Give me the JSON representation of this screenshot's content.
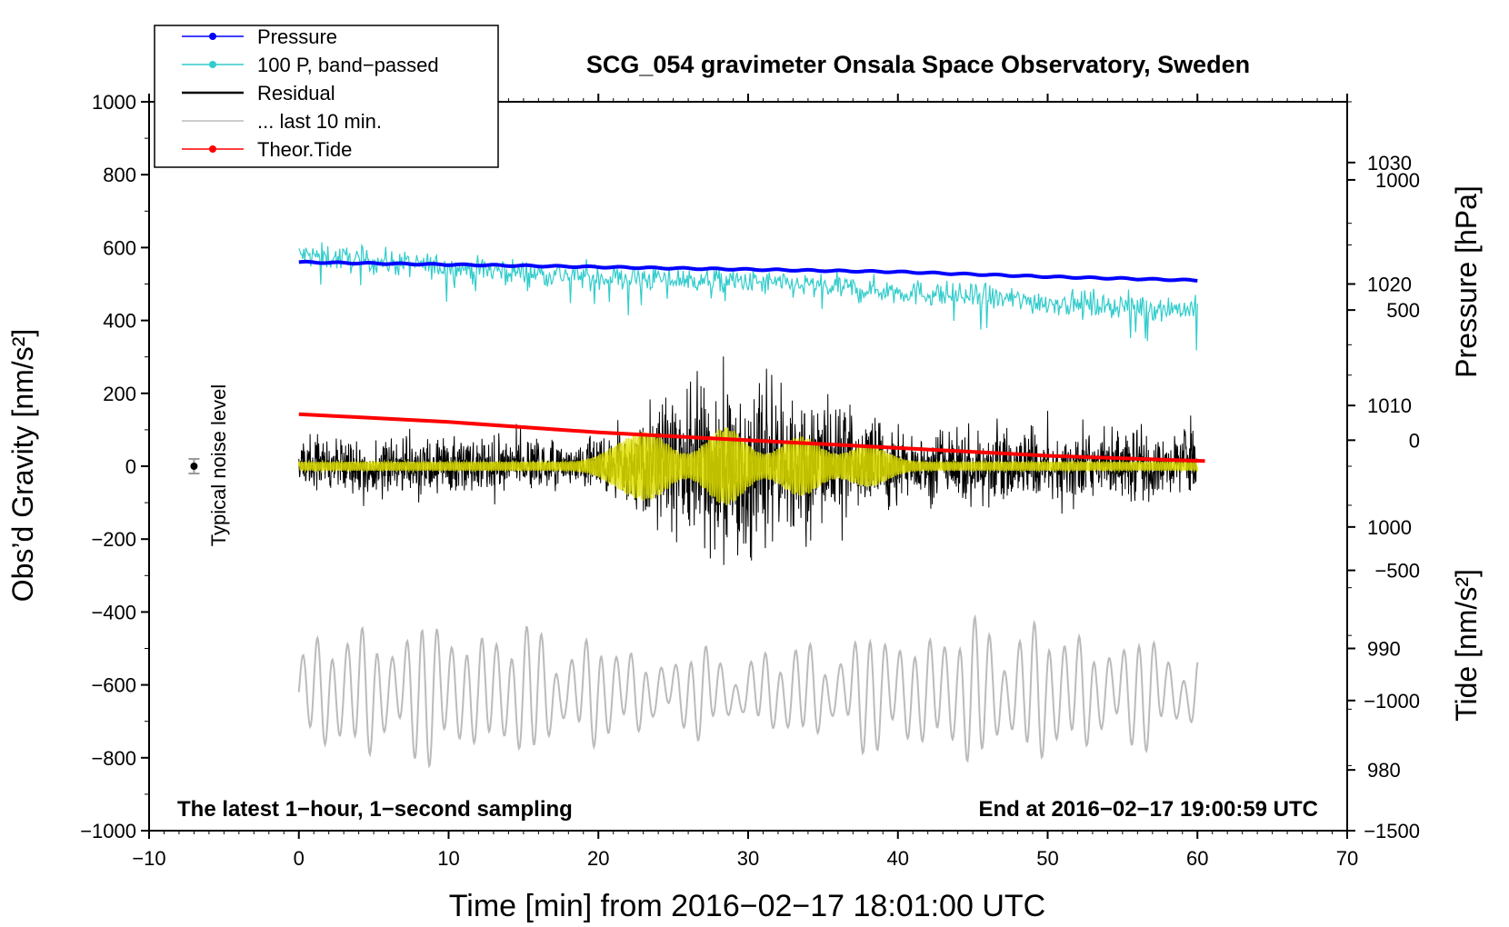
{
  "chart_data": {
    "type": "line",
    "title": "SCG_054 gravimeter Onsala Space Observatory, Sweden",
    "xlabel": "Time [min] from 2016−02−17 18:01:00 UTC",
    "ylabel": "Obs’d Gravity [nm/s²]",
    "ylabel_right_top": "Pressure [hPa]",
    "ylabel_right_bottom": "Tide [nm/s²]",
    "xlim": [
      -10,
      70
    ],
    "ylim": [
      -1000,
      1000
    ],
    "pressure_axis_range": [
      975,
      1035
    ],
    "tide_axis_range": [
      -1500,
      1300
    ],
    "x_ticks": [
      -10,
      0,
      10,
      20,
      30,
      40,
      50,
      60,
      70
    ],
    "x_tick_labels": [
      "−10",
      "0",
      "10",
      "20",
      "30",
      "40",
      "50",
      "60",
      "70"
    ],
    "y_ticks": [
      1000,
      800,
      600,
      400,
      200,
      0,
      -200,
      -400,
      -600,
      -800,
      -1000
    ],
    "y_tick_labels": [
      "1000",
      "800",
      "600",
      "400",
      "200",
      "0",
      "−200",
      "−400",
      "−600",
      "−800",
      "−1000"
    ],
    "pressure_ticks": [
      1030,
      1020,
      1010,
      1000,
      990,
      980
    ],
    "pressure_tick_labels": [
      "1030",
      "1020",
      "1010",
      "1000",
      "990",
      "980"
    ],
    "tide_ticks": [
      1000,
      500,
      0,
      -500,
      -1000,
      -1500
    ],
    "tide_tick_labels": [
      "1000",
      "500",
      "0",
      "−500",
      "−1000",
      "−1500"
    ],
    "legend": {
      "placement": "top-left",
      "entries": [
        {
          "label": "Pressure",
          "color": "#0000ff",
          "marker": true
        },
        {
          "label": "100 P, band−passed",
          "color": "#33cccc",
          "marker": true
        },
        {
          "label": "Residual",
          "color": "#000000",
          "marker": false
        },
        {
          "label": "... last 10 min.",
          "color": "#bbbbbb",
          "marker": false
        },
        {
          "label": "Theor.Tide",
          "color": "#ff0000",
          "marker": true
        }
      ]
    },
    "series": [
      {
        "name": "Pressure",
        "axis": "pressure",
        "color": "#0000ff",
        "x": [
          0,
          10,
          20,
          30,
          40,
          50,
          60
        ],
        "values": [
          1021.8,
          1021.6,
          1021.4,
          1021.2,
          1021.0,
          1020.6,
          1020.3
        ]
      },
      {
        "name": "100 P, band−passed",
        "axis": "gravity",
        "color": "#33cccc",
        "x": [
          0,
          10,
          20,
          30,
          40,
          50,
          60
        ],
        "values": [
          580,
          545,
          520,
          505,
          480,
          450,
          430
        ],
        "noise_amplitude": 30
      },
      {
        "name": "Residual",
        "axis": "gravity",
        "color": "#000000",
        "x": [
          0,
          10,
          20,
          25,
          30,
          35,
          40,
          50,
          60
        ],
        "values": [
          0,
          0,
          0,
          0,
          0,
          0,
          0,
          0,
          0
        ],
        "envelope": [
          [
            0,
            110
          ],
          [
            20,
            110
          ],
          [
            25,
            300
          ],
          [
            28,
            400
          ],
          [
            30,
            350
          ],
          [
            33,
            330
          ],
          [
            36,
            250
          ],
          [
            40,
            140
          ],
          [
            50,
            150
          ],
          [
            60,
            150
          ]
        ]
      },
      {
        "name": "... last 10 min.",
        "axis": "gravity",
        "color": "#bbbbbb",
        "x": [
          0,
          60
        ],
        "values": [
          -620,
          -620
        ],
        "amplitude": 160
      },
      {
        "name": "Theor.Tide",
        "axis": "tide",
        "color": "#ff0000",
        "x": [
          0,
          10,
          20,
          30,
          40,
          50,
          60.5
        ],
        "values": [
          100,
          70,
          30,
          0,
          -30,
          -60,
          -80
        ]
      }
    ],
    "noise_indicator": {
      "x": -7,
      "y": 0,
      "error": 20,
      "label": "Typical noise level"
    },
    "annotations": {
      "bottom_left": "The latest 1−hour, 1−second sampling",
      "bottom_right": "End at 2016−02−17 19:00:59 UTC"
    }
  }
}
